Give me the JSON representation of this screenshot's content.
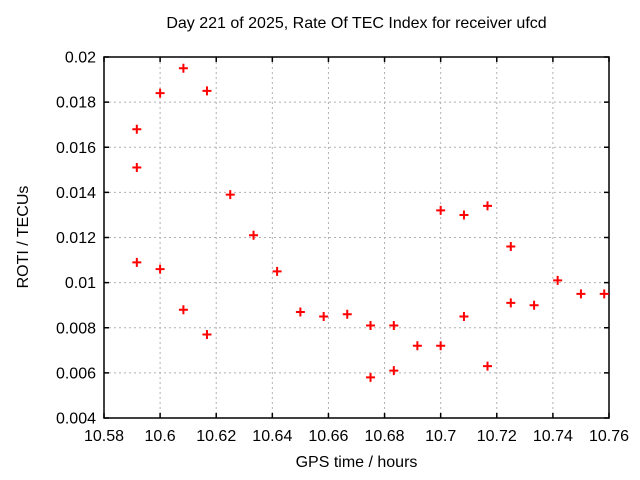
{
  "window": {
    "background": "#ffffff"
  },
  "chart_data": {
    "type": "scatter",
    "title": "Day 221 of 2025, Rate Of TEC Index for receiver ufcd",
    "xlabel": "GPS time / hours",
    "ylabel": "ROTI / TECUs",
    "xlim": [
      10.58,
      10.76
    ],
    "ylim": [
      0.004,
      0.02
    ],
    "x_ticks": [
      {
        "v": 10.58,
        "label": "10.58"
      },
      {
        "v": 10.6,
        "label": "10.6"
      },
      {
        "v": 10.62,
        "label": "10.62"
      },
      {
        "v": 10.64,
        "label": "10.64"
      },
      {
        "v": 10.66,
        "label": "10.66"
      },
      {
        "v": 10.68,
        "label": "10.68"
      },
      {
        "v": 10.7,
        "label": "10.7"
      },
      {
        "v": 10.72,
        "label": "10.72"
      },
      {
        "v": 10.74,
        "label": "10.74"
      },
      {
        "v": 10.76,
        "label": "10.76"
      }
    ],
    "y_ticks": [
      {
        "v": 0.004,
        "label": "0.004"
      },
      {
        "v": 0.006,
        "label": "0.006"
      },
      {
        "v": 0.008,
        "label": "0.008"
      },
      {
        "v": 0.01,
        "label": "0.01"
      },
      {
        "v": 0.012,
        "label": "0.012"
      },
      {
        "v": 0.014,
        "label": "0.014"
      },
      {
        "v": 0.016,
        "label": "0.016"
      },
      {
        "v": 0.018,
        "label": "0.018"
      },
      {
        "v": 0.02,
        "label": "0.02"
      }
    ],
    "grid": {
      "shown": true,
      "style": "dashed",
      "color": "#b0b0b0"
    },
    "legend": "none",
    "axis_color": "#000000",
    "text_color": "#000000",
    "series": [
      {
        "name": "ROTI",
        "marker": "plus",
        "color": "#ff0000",
        "points": [
          [
            10.5917,
            0.0168
          ],
          [
            10.5917,
            0.0151
          ],
          [
            10.5917,
            0.0109
          ],
          [
            10.6,
            0.0184
          ],
          [
            10.6,
            0.0106
          ],
          [
            10.6083,
            0.0195
          ],
          [
            10.6083,
            0.0088
          ],
          [
            10.6167,
            0.0185
          ],
          [
            10.6167,
            0.0077
          ],
          [
            10.625,
            0.0139
          ],
          [
            10.6333,
            0.0121
          ],
          [
            10.6417,
            0.0105
          ],
          [
            10.65,
            0.0087
          ],
          [
            10.6583,
            0.0085
          ],
          [
            10.6667,
            0.0086
          ],
          [
            10.675,
            0.0081
          ],
          [
            10.675,
            0.0058
          ],
          [
            10.6833,
            0.0081
          ],
          [
            10.6833,
            0.0061
          ],
          [
            10.6917,
            0.0072
          ],
          [
            10.7,
            0.0132
          ],
          [
            10.7,
            0.0072
          ],
          [
            10.7083,
            0.013
          ],
          [
            10.7083,
            0.0085
          ],
          [
            10.7167,
            0.0134
          ],
          [
            10.7167,
            0.0063
          ],
          [
            10.725,
            0.0116
          ],
          [
            10.725,
            0.0091
          ],
          [
            10.7333,
            0.009
          ],
          [
            10.7417,
            0.0101
          ],
          [
            10.75,
            0.0095
          ],
          [
            10.7583,
            0.0095
          ]
        ]
      }
    ]
  }
}
